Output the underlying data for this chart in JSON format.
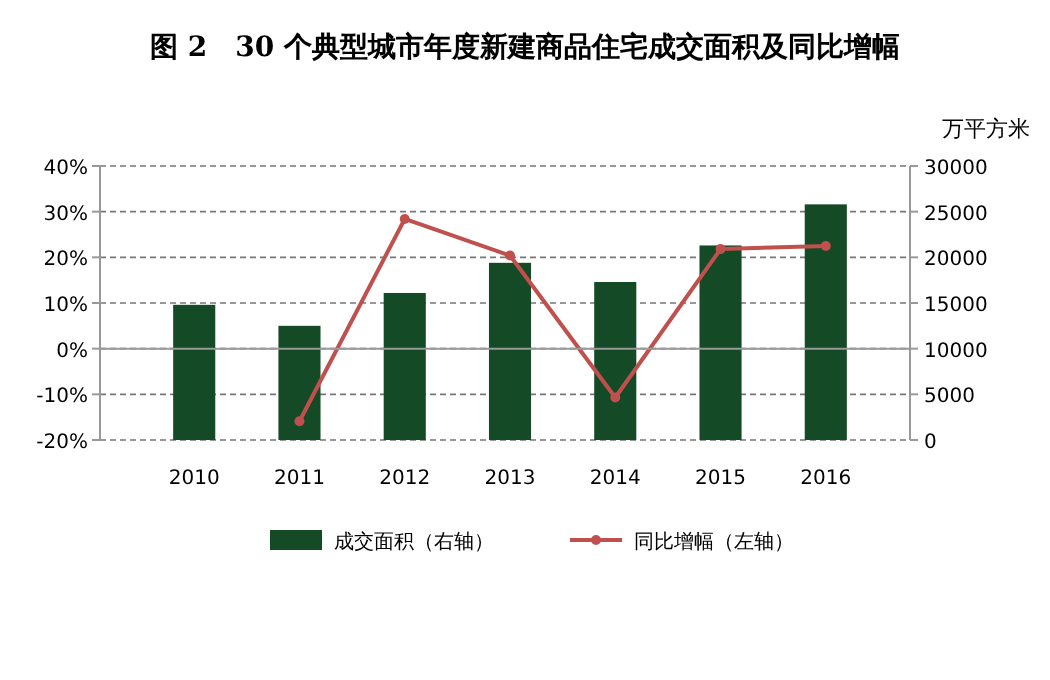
{
  "chart_data": {
    "type": "bar",
    "title": "图 2　30 个典型城市年度新建商品住宅成交面积及同比增幅",
    "y2label": "万平方米",
    "categories": [
      "2010",
      "2011",
      "2012",
      "2013",
      "2014",
      "2015",
      "2016"
    ],
    "series": [
      {
        "name": "成交面积（右轴）",
        "axis": "y2",
        "color": "#154a26",
        "values": [
          14800,
          12500,
          16100,
          19400,
          17300,
          21300,
          25800
        ]
      },
      {
        "name": "同比增幅（左轴）",
        "type": "line",
        "color": "#c0504d",
        "marker": "circle",
        "values": [
          null,
          -15.9,
          28.4,
          20.4,
          -10.7,
          21.8,
          22.5
        ]
      }
    ],
    "ylim": [
      -20,
      40
    ],
    "yticks": [
      {
        "value": -20,
        "label": "-20%"
      },
      {
        "value": -10,
        "label": "-10%"
      },
      {
        "value": 0,
        "label": "0%"
      },
      {
        "value": 10,
        "label": "10%"
      },
      {
        "value": 20,
        "label": "20%"
      },
      {
        "value": 30,
        "label": "30%"
      },
      {
        "value": 40,
        "label": "40%"
      }
    ],
    "y2lim": [
      0,
      30000
    ],
    "y2ticks": [
      0,
      5000,
      10000,
      15000,
      20000,
      25000,
      30000
    ],
    "grid": "y",
    "legend": "bottom"
  }
}
